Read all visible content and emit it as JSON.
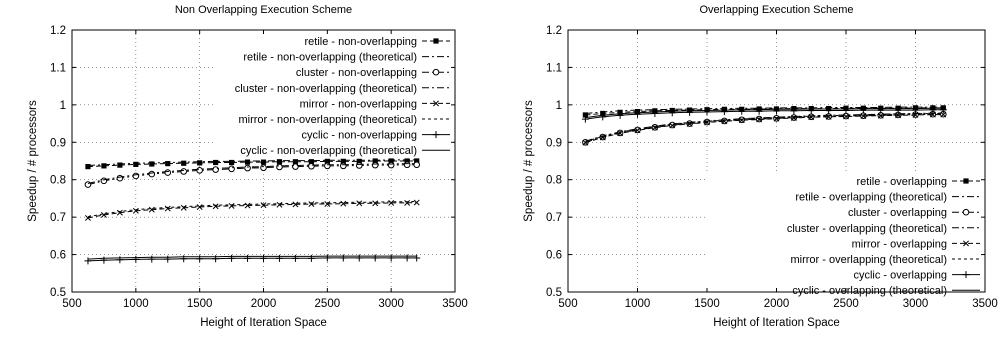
{
  "chart_data": [
    {
      "type": "line",
      "title": "Non Overlapping Execution Scheme",
      "xlabel": "Height of Iteration Space",
      "ylabel": "Speedup / # processors",
      "xlim": [
        500,
        3500
      ],
      "ylim": [
        0.5,
        1.2
      ],
      "xticks": [
        "500",
        "1000",
        "1500",
        "2000",
        "2500",
        "3000",
        "3500"
      ],
      "yticks": [
        "0.5",
        "0.6",
        "0.7",
        "0.8",
        "0.9",
        "1",
        "1.1",
        "1.2"
      ],
      "grid": true,
      "legend_position": "top-right",
      "x": [
        625,
        750,
        875,
        1000,
        1125,
        1250,
        1375,
        1500,
        1625,
        1750,
        1875,
        2000,
        2125,
        2250,
        2375,
        2500,
        2625,
        2750,
        2875,
        3000,
        3125,
        3200
      ],
      "series": [
        {
          "name": "retile - non-overlapping",
          "style": "dash",
          "marker": "square",
          "values": [
            0.835,
            0.837,
            0.839,
            0.841,
            0.842,
            0.843,
            0.844,
            0.845,
            0.846,
            0.846,
            0.847,
            0.847,
            0.848,
            0.848,
            0.848,
            0.849,
            0.849,
            0.849,
            0.85,
            0.85,
            0.85,
            0.85
          ]
        },
        {
          "name": "retile - non-overlapping (theoretical)",
          "style": "dashdot",
          "marker": "none",
          "values": [
            0.838,
            0.84,
            0.842,
            0.844,
            0.845,
            0.846,
            0.847,
            0.848,
            0.849,
            0.849,
            0.85,
            0.85,
            0.851,
            0.851,
            0.851,
            0.852,
            0.852,
            0.852,
            0.852,
            0.853,
            0.853,
            0.853
          ]
        },
        {
          "name": "cluster - non-overlapping",
          "style": "dashdot",
          "marker": "circle",
          "values": [
            0.787,
            0.797,
            0.804,
            0.81,
            0.815,
            0.819,
            0.822,
            0.825,
            0.827,
            0.829,
            0.831,
            0.832,
            0.834,
            0.835,
            0.836,
            0.837,
            0.837,
            0.838,
            0.839,
            0.839,
            0.84,
            0.84
          ]
        },
        {
          "name": "cluster - non-overlapping (theoretical)",
          "style": "dashdot",
          "marker": "none",
          "values": [
            0.79,
            0.8,
            0.807,
            0.813,
            0.818,
            0.822,
            0.825,
            0.828,
            0.83,
            0.832,
            0.834,
            0.835,
            0.837,
            0.838,
            0.839,
            0.84,
            0.84,
            0.841,
            0.842,
            0.842,
            0.843,
            0.843
          ]
        },
        {
          "name": "mirror - non-overlapping",
          "style": "dash",
          "marker": "x",
          "values": [
            0.698,
            0.706,
            0.712,
            0.717,
            0.72,
            0.723,
            0.725,
            0.727,
            0.729,
            0.73,
            0.731,
            0.732,
            0.733,
            0.734,
            0.735,
            0.735,
            0.736,
            0.737,
            0.737,
            0.738,
            0.738,
            0.739
          ]
        },
        {
          "name": "mirror - non-overlapping (theoretical)",
          "style": "shortdash",
          "marker": "none",
          "values": [
            0.701,
            0.709,
            0.715,
            0.72,
            0.723,
            0.726,
            0.728,
            0.73,
            0.732,
            0.733,
            0.734,
            0.735,
            0.736,
            0.737,
            0.738,
            0.738,
            0.739,
            0.74,
            0.74,
            0.741,
            0.741,
            0.742
          ]
        },
        {
          "name": "cyclic - non-overlapping",
          "style": "solid",
          "marker": "plus",
          "values": [
            0.583,
            0.585,
            0.586,
            0.587,
            0.588,
            0.588,
            0.589,
            0.589,
            0.589,
            0.59,
            0.59,
            0.59,
            0.59,
            0.59,
            0.59,
            0.591,
            0.591,
            0.591,
            0.591,
            0.591,
            0.591,
            0.591
          ]
        },
        {
          "name": "cyclic - non-overlapping (theoretical)",
          "style": "solid",
          "marker": "none",
          "values": [
            0.588,
            0.59,
            0.591,
            0.592,
            0.593,
            0.593,
            0.594,
            0.594,
            0.594,
            0.595,
            0.595,
            0.595,
            0.595,
            0.595,
            0.595,
            0.596,
            0.596,
            0.596,
            0.596,
            0.596,
            0.596,
            0.596
          ]
        }
      ]
    },
    {
      "type": "line",
      "title": "Overlapping Execution Scheme",
      "xlabel": "Height of Iteration Space",
      "ylabel": "Speedup / # processors",
      "xlim": [
        500,
        3500
      ],
      "ylim": [
        0.5,
        1.2
      ],
      "xticks": [
        "500",
        "1000",
        "1500",
        "2000",
        "2500",
        "3000",
        "3500"
      ],
      "yticks": [
        "0.5",
        "0.6",
        "0.7",
        "0.8",
        "0.9",
        "1",
        "1.1",
        "1.2"
      ],
      "grid": true,
      "legend_position": "bottom-right",
      "x": [
        625,
        750,
        875,
        1000,
        1125,
        1250,
        1375,
        1500,
        1625,
        1750,
        1875,
        2000,
        2125,
        2250,
        2375,
        2500,
        2625,
        2750,
        2875,
        3000,
        3125,
        3200
      ],
      "series": [
        {
          "name": "retile - overlapping",
          "style": "dash",
          "marker": "square",
          "values": [
            0.973,
            0.977,
            0.98,
            0.982,
            0.984,
            0.985,
            0.986,
            0.987,
            0.988,
            0.988,
            0.989,
            0.989,
            0.99,
            0.99,
            0.99,
            0.991,
            0.991,
            0.991,
            0.991,
            0.992,
            0.992,
            0.992
          ]
        },
        {
          "name": "retile - overlapping (theoretical)",
          "style": "dashdot",
          "marker": "none",
          "values": [
            0.977,
            0.981,
            0.984,
            0.986,
            0.987,
            0.988,
            0.989,
            0.99,
            0.99,
            0.991,
            0.991,
            0.992,
            0.992,
            0.992,
            0.993,
            0.993,
            0.993,
            0.993,
            0.994,
            0.994,
            0.994,
            0.994
          ]
        },
        {
          "name": "cluster - overlapping",
          "style": "dashdot",
          "marker": "circle",
          "values": [
            0.9,
            0.914,
            0.925,
            0.933,
            0.94,
            0.946,
            0.95,
            0.954,
            0.957,
            0.96,
            0.962,
            0.964,
            0.966,
            0.968,
            0.969,
            0.97,
            0.971,
            0.972,
            0.973,
            0.974,
            0.975,
            0.975
          ]
        },
        {
          "name": "cluster - overlapping (theoretical)",
          "style": "dashdot",
          "marker": "none",
          "values": [
            0.903,
            0.917,
            0.928,
            0.936,
            0.943,
            0.949,
            0.953,
            0.957,
            0.96,
            0.963,
            0.965,
            0.967,
            0.969,
            0.971,
            0.972,
            0.973,
            0.974,
            0.975,
            0.976,
            0.977,
            0.978,
            0.978
          ]
        },
        {
          "name": "mirror - overlapping",
          "style": "dash",
          "marker": "x",
          "values": [
            0.899,
            0.913,
            0.924,
            0.932,
            0.939,
            0.945,
            0.949,
            0.953,
            0.956,
            0.959,
            0.961,
            0.963,
            0.965,
            0.967,
            0.968,
            0.969,
            0.97,
            0.971,
            0.972,
            0.973,
            0.974,
            0.974
          ]
        },
        {
          "name": "mirror - overlapping (theoretical)",
          "style": "shortdash",
          "marker": "none",
          "values": [
            0.902,
            0.916,
            0.927,
            0.935,
            0.942,
            0.948,
            0.952,
            0.956,
            0.959,
            0.962,
            0.964,
            0.966,
            0.968,
            0.97,
            0.971,
            0.972,
            0.973,
            0.974,
            0.975,
            0.976,
            0.977,
            0.977
          ]
        },
        {
          "name": "cyclic - overlapping",
          "style": "solid",
          "marker": "plus",
          "values": [
            0.962,
            0.968,
            0.972,
            0.975,
            0.977,
            0.979,
            0.98,
            0.981,
            0.982,
            0.983,
            0.983,
            0.984,
            0.984,
            0.985,
            0.985,
            0.985,
            0.986,
            0.986,
            0.986,
            0.986,
            0.987,
            0.987
          ]
        },
        {
          "name": "cyclic - overlapping (theoretical)",
          "style": "solid",
          "marker": "none",
          "values": [
            0.966,
            0.972,
            0.976,
            0.979,
            0.981,
            0.983,
            0.984,
            0.985,
            0.986,
            0.987,
            0.987,
            0.988,
            0.988,
            0.989,
            0.989,
            0.989,
            0.99,
            0.99,
            0.99,
            0.99,
            0.991,
            0.991
          ]
        }
      ]
    }
  ]
}
